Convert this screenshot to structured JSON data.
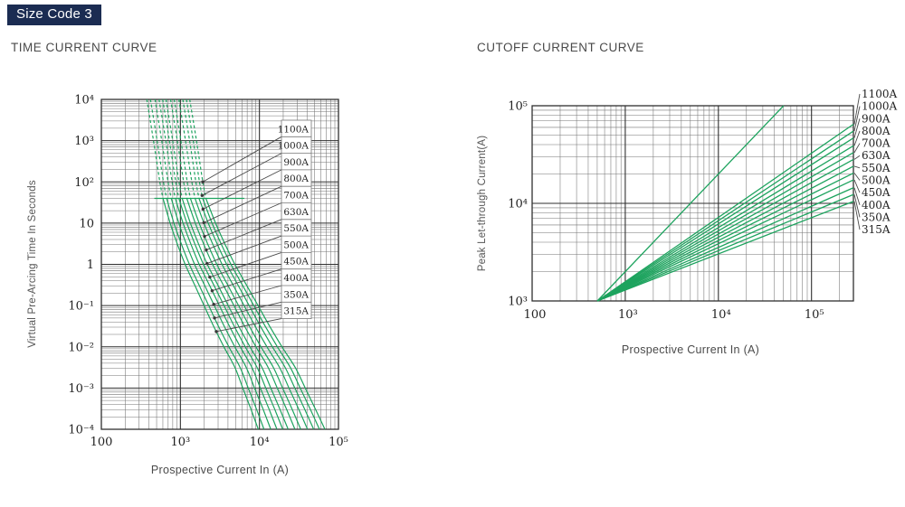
{
  "page": {
    "badge": "Size Code 3"
  },
  "headings": {
    "left": "TIME CURRENT CURVE",
    "right": "CUTOFF CURRENT CURVE"
  },
  "colors": {
    "badge_bg": "#1b2c52",
    "badge_text": "#ffffff",
    "curve_green": "#1da35e",
    "grid_minor": "#747474",
    "grid_major": "#2f2f2f",
    "frame": "#2f2f2f",
    "leader": "#4a4a4a",
    "tick_text": "#222222",
    "label_box_border": "#777777",
    "heading_text": "#4a4a4a"
  },
  "chart_data": [
    {
      "id": "time-current-curve",
      "type": "line",
      "title": "TIME CURRENT CURVE",
      "xlabel": "Prospective Current In (A)",
      "ylabel": "Virtual Pre-Arcing Time In Seconds",
      "x_scale": "log",
      "y_scale": "log",
      "grid": true,
      "xlim_log": [
        2,
        5
      ],
      "ylim_log": [
        -4,
        4
      ],
      "x_ticks": [
        {
          "label": "100",
          "log": 2
        },
        {
          "label": "10³",
          "log": 3
        },
        {
          "label": "10⁴",
          "log": 4
        },
        {
          "label": "10⁵",
          "log": 5
        }
      ],
      "y_ticks": [
        {
          "label": "10⁴",
          "log": 4
        },
        {
          "label": "10³",
          "log": 3
        },
        {
          "label": "10²",
          "log": 2
        },
        {
          "label": "10",
          "log": 1
        },
        {
          "label": "1",
          "log": 0
        },
        {
          "label": "10⁻¹",
          "log": -1
        },
        {
          "label": "10⁻²",
          "log": -2
        },
        {
          "label": "10⁻³",
          "log": -3
        },
        {
          "label": "10⁻⁴",
          "log": -4
        }
      ],
      "ratings_amps": [
        315,
        350,
        400,
        450,
        500,
        550,
        630,
        700,
        800,
        900,
        1000,
        1100
      ],
      "labels_desc": [
        "1100A",
        "1000A",
        "900A",
        "800A",
        "700A",
        "630A",
        "550A",
        "500A",
        "450A",
        "400A",
        "350A",
        "315A"
      ],
      "master_curve_logT_logI": [
        [
          4,
          2.575
        ],
        [
          3,
          2.66
        ],
        [
          2,
          2.74
        ],
        [
          1.6,
          2.78
        ],
        [
          1,
          2.87
        ],
        [
          0.5,
          2.96
        ],
        [
          0,
          3.06
        ],
        [
          -0.5,
          3.18
        ],
        [
          -1,
          3.3
        ],
        [
          -1.5,
          3.42
        ],
        [
          -2,
          3.55
        ],
        [
          -2.5,
          3.69
        ],
        [
          -3,
          3.79
        ],
        [
          -3.5,
          3.89
        ],
        [
          -4,
          3.985
        ]
      ],
      "fanout_decades": 0.3,
      "fanout_start_logT": 1.6,
      "dashed_above_logT": 1.6,
      "transition_line": {
        "logT": 1.6,
        "logI_from": 2.67,
        "logI_to": 3.81
      },
      "leader_dot_logT": [
        2.0,
        1.67,
        1.34,
        1.01,
        0.68,
        0.35,
        0.02,
        -0.31,
        -0.64,
        -0.97,
        -1.3,
        -1.63
      ]
    },
    {
      "id": "cutoff-current-curve",
      "type": "line",
      "title": "CUTOFF CURRENT CURVE",
      "xlabel": "Prospective Current In (A)",
      "ylabel": "Peak Let-through Current(A)",
      "x_scale": "log",
      "y_scale": "log",
      "grid": true,
      "xlim_log": [
        2,
        5.45
      ],
      "ylim_log": [
        3,
        5
      ],
      "x_ticks": [
        {
          "label": "100",
          "log": 2
        },
        {
          "label": "10³",
          "log": 3
        },
        {
          "label": "10⁴",
          "log": 4
        },
        {
          "label": "10⁵",
          "log": 5
        }
      ],
      "y_ticks": [
        {
          "label": "10⁵",
          "log": 5
        },
        {
          "label": "10⁴",
          "log": 4
        },
        {
          "label": "10³",
          "log": 3
        }
      ],
      "prospective_peak_line": {
        "from": [
          2.7,
          3.0
        ],
        "to": [
          4.7,
          5.0
        ]
      },
      "series": [
        {
          "name": "315A",
          "from": [
            2.7,
            3.0
          ],
          "to": [
            5.45,
            4.02
          ]
        },
        {
          "name": "350A",
          "from": [
            2.7,
            3.0
          ],
          "to": [
            5.45,
            4.09
          ]
        },
        {
          "name": "400A",
          "from": [
            2.7,
            3.0
          ],
          "to": [
            5.45,
            4.16
          ]
        },
        {
          "name": "450A",
          "from": [
            2.7,
            3.0
          ],
          "to": [
            5.45,
            4.24
          ]
        },
        {
          "name": "500A",
          "from": [
            2.7,
            3.0
          ],
          "to": [
            5.45,
            4.31
          ]
        },
        {
          "name": "550A",
          "from": [
            2.7,
            3.0
          ],
          "to": [
            5.45,
            4.38
          ]
        },
        {
          "name": "630A",
          "from": [
            2.7,
            3.0
          ],
          "to": [
            5.45,
            4.45
          ]
        },
        {
          "name": "700A",
          "from": [
            2.7,
            3.0
          ],
          "to": [
            5.45,
            4.52
          ]
        },
        {
          "name": "800A",
          "from": [
            2.7,
            3.0
          ],
          "to": [
            5.45,
            4.59
          ]
        },
        {
          "name": "900A",
          "from": [
            2.7,
            3.0
          ],
          "to": [
            5.45,
            4.67
          ]
        },
        {
          "name": "1000A",
          "from": [
            2.7,
            3.0
          ],
          "to": [
            5.45,
            4.74
          ]
        },
        {
          "name": "1100A",
          "from": [
            2.7,
            3.0
          ],
          "to": [
            5.45,
            4.81
          ]
        }
      ],
      "labels_desc": [
        "1100A",
        "1000A",
        "900A",
        "800A",
        "700A",
        "630A",
        "550A",
        "500A",
        "450A",
        "400A",
        "350A",
        "315A"
      ]
    }
  ]
}
